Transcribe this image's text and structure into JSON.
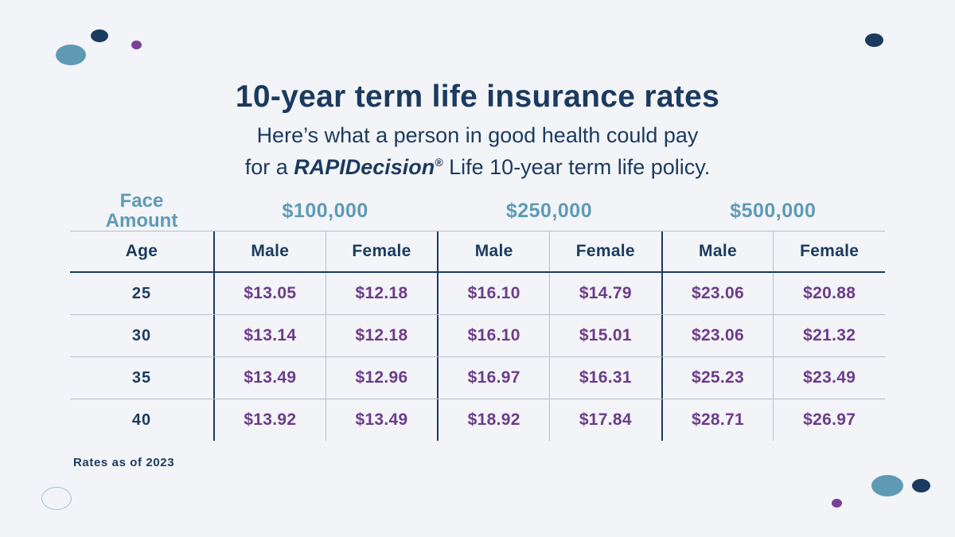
{
  "header": {
    "title": "10-year term life insurance rates",
    "subtitle_line1": "Here’s what a person in good health could pay",
    "subtitle_line2_prefix": "for a ",
    "brand": "RAPIDecision",
    "brand_mark": "®",
    "subtitle_line2_suffix": " Life 10-year term life policy."
  },
  "table": {
    "face_label_line1": "Face",
    "face_label_line2": "Amount",
    "face_amounts": [
      "$100,000",
      "$250,000",
      "$500,000"
    ],
    "column_headers": {
      "age": "Age",
      "male": "Male",
      "female": "Female"
    },
    "rows": [
      {
        "age": "25",
        "values": [
          "$13.05",
          "$12.18",
          "$16.10",
          "$14.79",
          "$23.06",
          "$20.88"
        ]
      },
      {
        "age": "30",
        "values": [
          "$13.14",
          "$12.18",
          "$16.10",
          "$15.01",
          "$23.06",
          "$21.32"
        ]
      },
      {
        "age": "35",
        "values": [
          "$13.49",
          "$12.96",
          "$16.97",
          "$16.31",
          "$25.23",
          "$23.49"
        ]
      },
      {
        "age": "40",
        "values": [
          "$13.92",
          "$13.49",
          "$18.92",
          "$17.84",
          "$28.71",
          "$26.97"
        ]
      }
    ]
  },
  "footnote": "Rates as of 2023",
  "colors": {
    "navy": "#1b3a5f",
    "steel_blue": "#5f9ab5",
    "purple": "#6c3c89",
    "background": "#f2f4f7"
  },
  "chart_data": {
    "type": "table",
    "title": "10-year term life insurance rates",
    "subtitle": "Here’s what a person in good health could pay for a RAPIDecision® Life 10-year term life policy.",
    "column_groups": [
      "$100,000",
      "$250,000",
      "$500,000"
    ],
    "columns": [
      "Age",
      "Male $100,000",
      "Female $100,000",
      "Male $250,000",
      "Female $250,000",
      "Male $500,000",
      "Female $500,000"
    ],
    "rows": [
      [
        25,
        13.05,
        12.18,
        16.1,
        14.79,
        23.06,
        20.88
      ],
      [
        30,
        13.14,
        12.18,
        16.1,
        15.01,
        23.06,
        21.32
      ],
      [
        35,
        13.49,
        12.96,
        16.97,
        16.31,
        25.23,
        23.49
      ],
      [
        40,
        13.92,
        13.49,
        18.92,
        17.84,
        28.71,
        26.97
      ]
    ],
    "footnote": "Rates as of 2023"
  }
}
